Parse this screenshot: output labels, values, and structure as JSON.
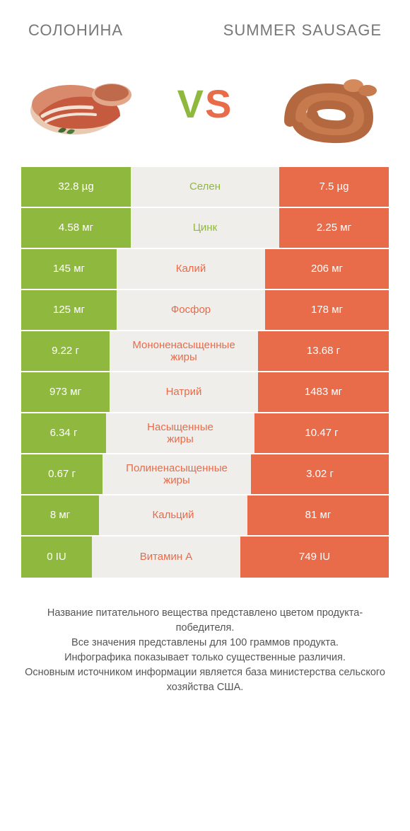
{
  "colors": {
    "left": "#8fb93e",
    "right": "#e86b4a",
    "mid_bg": "#f0eeeb",
    "text_gray": "#777777",
    "footer_text": "#555555"
  },
  "header": {
    "left_title": "СОЛОНИНА",
    "right_title": "SUMMER\nSAUSAGE"
  },
  "hero": {
    "vs_text": "VS"
  },
  "table": {
    "total_width": 520,
    "rows": [
      {
        "left": "32.8 µg",
        "label": "Селен",
        "right": "7.5 µg",
        "left_w": 155,
        "right_w": 155
      },
      {
        "left": "4.58 мг",
        "label": "Цинк",
        "right": "2.25 мг",
        "left_w": 155,
        "right_w": 155
      },
      {
        "left": "145 мг",
        "label": "Калий",
        "right": "206 мг",
        "left_w": 135,
        "right_w": 175
      },
      {
        "left": "125 мг",
        "label": "Фосфор",
        "right": "178 мг",
        "left_w": 135,
        "right_w": 175
      },
      {
        "left": "9.22 г",
        "label": "Мононенасыщенные\nжиры",
        "right": "13.68 г",
        "left_w": 125,
        "right_w": 185
      },
      {
        "left": "973 мг",
        "label": "Натрий",
        "right": "1483 мг",
        "left_w": 125,
        "right_w": 185
      },
      {
        "left": "6.34 г",
        "label": "Насыщенные\nжиры",
        "right": "10.47 г",
        "left_w": 120,
        "right_w": 190
      },
      {
        "left": "0.67 г",
        "label": "Полиненасыщенные\nжиры",
        "right": "3.02 г",
        "left_w": 115,
        "right_w": 195
      },
      {
        "left": "8 мг",
        "label": "Кальций",
        "right": "81 мг",
        "left_w": 110,
        "right_w": 200
      },
      {
        "left": "0 IU",
        "label": "Витамин A",
        "right": "749 IU",
        "left_w": 100,
        "right_w": 210
      }
    ]
  },
  "footer": {
    "lines": [
      "Название питательного вещества представлено цветом продукта-победителя.",
      "Все значения представлены для 100 граммов продукта.",
      "Инфографика показывает только существенные различия.",
      "Основным источником информации является база министерства сельского хозяйства США."
    ]
  }
}
